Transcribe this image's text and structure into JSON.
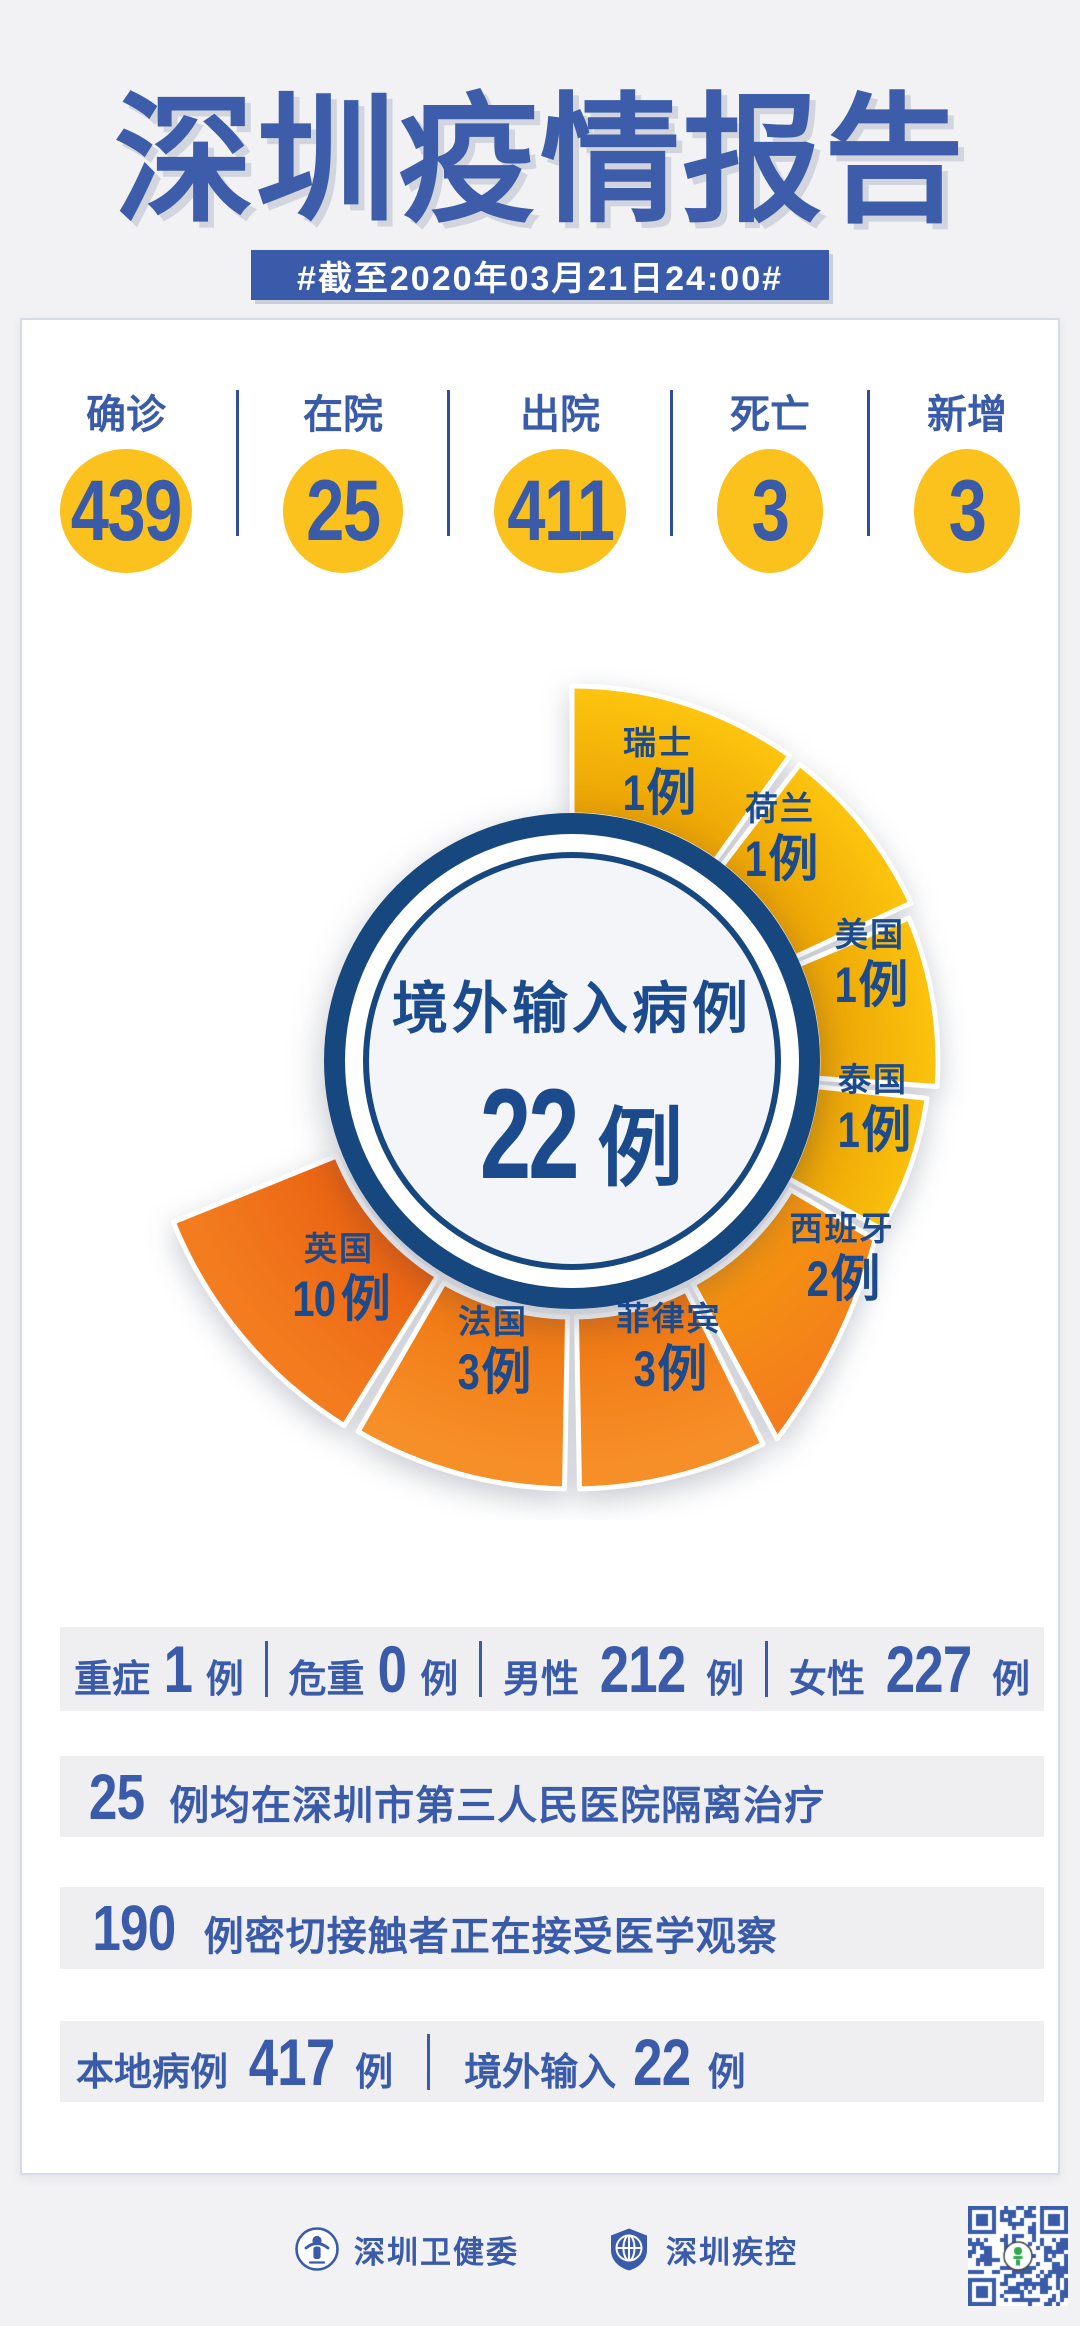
{
  "header": {
    "title": "深圳疫情报告",
    "subtitle": "#截至2020年03月21日24:00#"
  },
  "summary": {
    "stats": [
      {
        "label": "确诊",
        "value": "439"
      },
      {
        "label": "在院",
        "value": "25"
      },
      {
        "label": "出院",
        "value": "411"
      },
      {
        "label": "死亡",
        "value": "3"
      },
      {
        "label": "新增",
        "value": "3"
      }
    ]
  },
  "chart_data": {
    "type": "pie",
    "title": "境外输入病例 22例",
    "center": {
      "label": "境外输入病例",
      "value": "22",
      "unit": "例"
    },
    "categories": [
      "瑞士",
      "荷兰",
      "美国",
      "泰国",
      "西班牙",
      "菲律宾",
      "法国",
      "英国"
    ],
    "values": [
      1,
      1,
      1,
      1,
      2,
      3,
      3,
      10
    ],
    "unit": "例",
    "total": 22,
    "legend_position": "on-wedge",
    "palette": {
      "yellow": "#FBC20E",
      "orange": "#F58220",
      "deep_orange": "#F0661A",
      "ring_navy": "#17477F",
      "label_navy": "#1B4B8C"
    },
    "segments": [
      {
        "country": "瑞士",
        "value": "1",
        "unit": "例"
      },
      {
        "country": "荷兰",
        "value": "1",
        "unit": "例"
      },
      {
        "country": "美国",
        "value": "1",
        "unit": "例"
      },
      {
        "country": "泰国",
        "value": "1",
        "unit": "例"
      },
      {
        "country": "西班牙",
        "value": "2",
        "unit": "例"
      },
      {
        "country": "菲律宾",
        "value": "3",
        "unit": "例"
      },
      {
        "country": "法国",
        "value": "3",
        "unit": "例"
      },
      {
        "country": "英国",
        "value": "10",
        "unit": "例"
      }
    ]
  },
  "details": {
    "row1": {
      "items": [
        {
          "label": "重症",
          "value": "1",
          "unit": "例"
        },
        {
          "label": "危重",
          "value": "0",
          "unit": "例"
        },
        {
          "label": "男性",
          "value": "212",
          "unit": "例"
        },
        {
          "label": "女性",
          "value": "227",
          "unit": "例"
        }
      ]
    },
    "row2": {
      "value": "25",
      "text": "例均在深圳市第三人民医院隔离治疗"
    },
    "row3": {
      "value": "190",
      "text": "例密切接触者正在接受医学观察"
    },
    "row4": {
      "items": [
        {
          "label": "本地病例",
          "value": "417",
          "unit": "例"
        },
        {
          "label": "境外输入",
          "value": "22",
          "unit": "例"
        }
      ]
    }
  },
  "footer": {
    "org1": "深圳卫健委",
    "org2": "深圳疾控",
    "qr_icon": "qr-code"
  }
}
